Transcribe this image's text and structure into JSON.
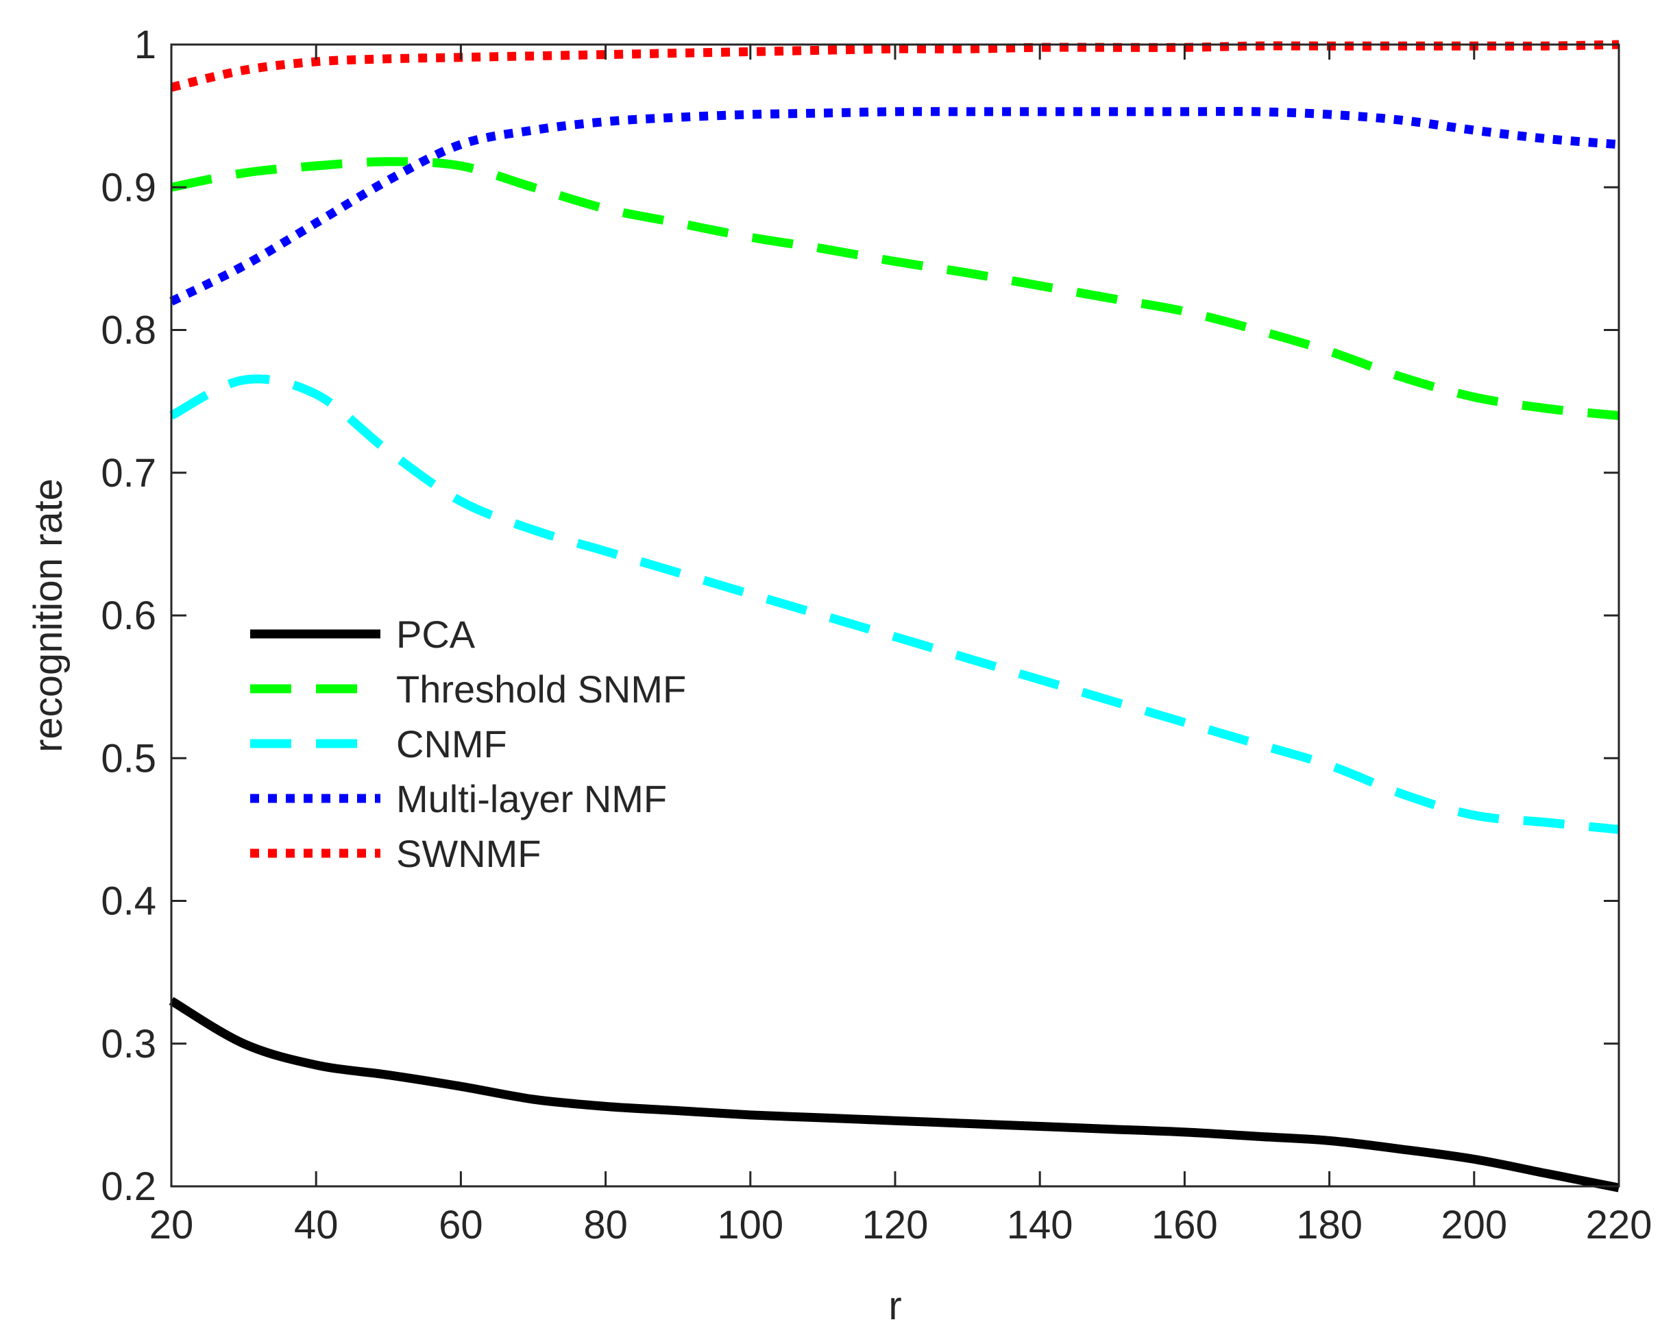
{
  "chart_data": {
    "type": "line",
    "title": "",
    "xlabel": "r",
    "ylabel": "recognition rate",
    "xlim": [
      20,
      220
    ],
    "ylim": [
      0.2,
      1
    ],
    "xticks": [
      20,
      40,
      60,
      80,
      100,
      120,
      140,
      160,
      180,
      200,
      220
    ],
    "yticks": [
      0.2,
      0.3,
      0.4,
      0.5,
      0.6,
      0.7,
      0.8,
      0.9,
      1
    ],
    "ytick_labels": [
      "0.2",
      "0.3",
      "0.4",
      "0.5",
      "0.6",
      "0.7",
      "0.8",
      "0.9",
      "1"
    ],
    "grid": false,
    "legend_position": "center-left",
    "x": [
      20,
      30,
      40,
      50,
      60,
      70,
      80,
      90,
      100,
      110,
      120,
      130,
      140,
      150,
      160,
      170,
      180,
      190,
      200,
      210,
      220
    ],
    "series": [
      {
        "name": "PCA",
        "color": "#000000",
        "style": "solid",
        "values": [
          0.33,
          0.3,
          0.285,
          0.278,
          0.27,
          0.261,
          0.256,
          0.253,
          0.25,
          0.248,
          0.246,
          0.244,
          0.242,
          0.24,
          0.238,
          0.235,
          0.232,
          0.226,
          0.219,
          0.209,
          0.199
        ]
      },
      {
        "name": "Threshold SNMF",
        "color": "#00ff00",
        "style": "dashed",
        "values": [
          0.9,
          0.91,
          0.915,
          0.918,
          0.915,
          0.9,
          0.885,
          0.875,
          0.865,
          0.857,
          0.848,
          0.84,
          0.831,
          0.822,
          0.813,
          0.8,
          0.785,
          0.767,
          0.753,
          0.745,
          0.74
        ]
      },
      {
        "name": "CNMF",
        "color": "#00ffff",
        "style": "dashed",
        "values": [
          0.74,
          0.765,
          0.755,
          0.715,
          0.68,
          0.66,
          0.645,
          0.63,
          0.615,
          0.6,
          0.585,
          0.57,
          0.555,
          0.54,
          0.525,
          0.51,
          0.495,
          0.475,
          0.46,
          0.455,
          0.45
        ]
      },
      {
        "name": "Multi-layer NMF",
        "color": "#0000ff",
        "style": "dotted",
        "values": [
          0.82,
          0.845,
          0.875,
          0.905,
          0.93,
          0.94,
          0.946,
          0.949,
          0.951,
          0.952,
          0.953,
          0.953,
          0.953,
          0.953,
          0.953,
          0.953,
          0.951,
          0.947,
          0.94,
          0.934,
          0.93
        ]
      },
      {
        "name": "SWNMF",
        "color": "#ff0000",
        "style": "dotted",
        "values": [
          0.97,
          0.982,
          0.988,
          0.99,
          0.991,
          0.992,
          0.993,
          0.994,
          0.995,
          0.996,
          0.997,
          0.997,
          0.998,
          0.998,
          0.998,
          0.999,
          0.999,
          0.999,
          0.999,
          0.999,
          1.0
        ]
      }
    ]
  }
}
